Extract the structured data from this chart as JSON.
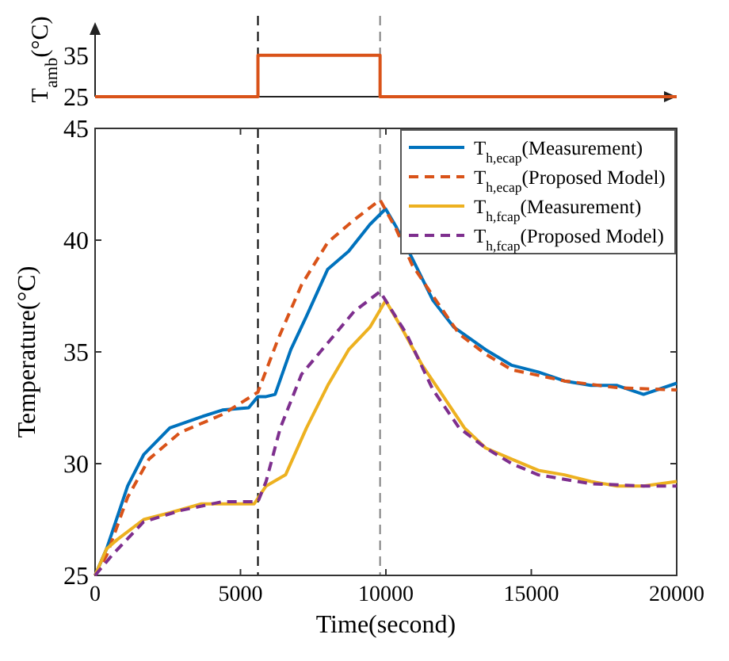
{
  "chart_data": [
    {
      "type": "step",
      "ylabel": "T$_{amb}$(°C)",
      "x": [
        0,
        5600,
        9800,
        20000
      ],
      "xlim": [
        0,
        20000
      ],
      "ylim": [
        25,
        43
      ],
      "yticks": [
        25,
        35
      ],
      "tick_labels": "y",
      "legend": false,
      "series": [
        {
          "color": "#d95319",
          "values": [
            25,
            35,
            25,
            25
          ]
        }
      ],
      "ref_lines": [
        {
          "axis": "x",
          "value": 5600,
          "color": "#000000",
          "line_style": "dashed"
        },
        {
          "axis": "x",
          "value": 9800,
          "color": "#808080",
          "line_style": "dashed"
        }
      ]
    },
    {
      "type": "line",
      "xlabel": "Time(second)",
      "ylabel": "Temperature(°C)",
      "xlim": [
        0,
        20000
      ],
      "ylim": [
        25,
        45
      ],
      "xticks": [
        0,
        5000,
        10000,
        15000,
        20000
      ],
      "yticks": [
        25,
        30,
        35,
        40,
        45
      ],
      "grid": false,
      "legend": "top right",
      "series": [
        {
          "name": "T$_{h,ecap}$(Measurement)",
          "color": "#0072bd",
          "line_style": "solid",
          "x": [
            0,
            400,
            1120,
            1670,
            2570,
            3660,
            4380,
            5280,
            5600,
            5880,
            6190,
            6730,
            7270,
            8000,
            8720,
            9450,
            9990,
            10350,
            10900,
            11620,
            12340,
            13430,
            14330,
            15240,
            16140,
            17050,
            17950,
            18860,
            20000
          ],
          "values": [
            25,
            26.2,
            29.0,
            30.4,
            31.6,
            32.1,
            32.4,
            32.5,
            33.0,
            33.0,
            33.1,
            35.1,
            36.6,
            38.7,
            39.5,
            40.7,
            41.4,
            40.6,
            39.2,
            37.3,
            36.1,
            35.1,
            34.4,
            34.1,
            33.7,
            33.5,
            33.5,
            33.1,
            33.6
          ]
        },
        {
          "name": "T$_{h,ecap}$(Proposed Model)",
          "color": "#d95319",
          "line_style": "dashed",
          "x": [
            0,
            400,
            1120,
            1850,
            2930,
            4380,
            5600,
            6300,
            7100,
            8000,
            8900,
            9800,
            10350,
            10900,
            11620,
            12520,
            13430,
            14330,
            16140,
            17950,
            20000
          ],
          "values": [
            25,
            25.9,
            28.5,
            30.2,
            31.4,
            32.2,
            33.2,
            35.6,
            38.0,
            39.9,
            40.9,
            41.8,
            40.5,
            38.9,
            37.5,
            35.8,
            34.9,
            34.2,
            33.7,
            33.4,
            33.3
          ]
        },
        {
          "name": "T$_{h,fcap}$(Measurement)",
          "color": "#edb120",
          "line_style": "solid",
          "x": [
            0,
            400,
            760,
            1670,
            2570,
            3660,
            4380,
            5470,
            5880,
            6550,
            7270,
            8000,
            8720,
            9450,
            9990,
            10530,
            11250,
            11980,
            12700,
            13430,
            14330,
            15240,
            16140,
            17050,
            17950,
            18860,
            20000
          ],
          "values": [
            25,
            26.2,
            26.6,
            27.5,
            27.8,
            28.2,
            28.2,
            28.2,
            29.0,
            29.5,
            31.6,
            33.5,
            35.1,
            36.1,
            37.3,
            36.1,
            34.4,
            33.0,
            31.6,
            30.7,
            30.2,
            29.7,
            29.5,
            29.2,
            29.0,
            29.0,
            29.2
          ]
        },
        {
          "name": "T$_{h,fcap}$(Proposed Model)",
          "color": "#7e2f8e",
          "line_style": "dashed",
          "x": [
            0,
            580,
            1670,
            2930,
            4380,
            5600,
            5880,
            6370,
            7100,
            8000,
            8900,
            9800,
            10710,
            11620,
            12520,
            13430,
            14330,
            15240,
            17050,
            18860,
            20000
          ],
          "values": [
            25,
            25.9,
            27.4,
            27.9,
            28.3,
            28.3,
            29.2,
            31.6,
            34.0,
            35.4,
            36.8,
            37.7,
            35.8,
            33.3,
            31.6,
            30.7,
            30.0,
            29.5,
            29.1,
            29.0,
            29.0
          ]
        }
      ],
      "ref_lines": [
        {
          "axis": "x",
          "value": 5600,
          "color": "#000000",
          "line_style": "dashed"
        },
        {
          "axis": "x",
          "value": 9800,
          "color": "#808080",
          "line_style": "dashed"
        }
      ]
    }
  ]
}
